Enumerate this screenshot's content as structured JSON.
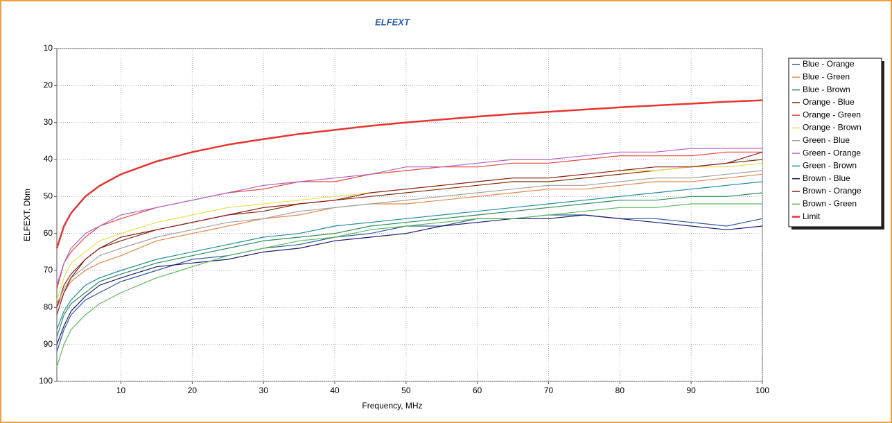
{
  "chart_data": {
    "type": "line",
    "title": "ELFEXT",
    "x_label": "Frequency, MHz",
    "y_label": "ELFEXT, Dbm",
    "x": [
      1,
      2,
      3,
      5,
      7,
      10,
      15,
      20,
      25,
      30,
      35,
      40,
      45,
      50,
      55,
      60,
      65,
      70,
      75,
      80,
      85,
      90,
      95,
      100
    ],
    "xlim": [
      1,
      100
    ],
    "xticks": [
      10,
      20,
      30,
      40,
      50,
      60,
      70,
      80,
      90,
      100
    ],
    "ylim": [
      100,
      10
    ],
    "yticks": [
      10,
      20,
      30,
      40,
      50,
      60,
      70,
      80,
      90,
      100
    ],
    "grid": true,
    "series": [
      {
        "name": "Blue - Orange",
        "color": "#2a5a9a",
        "values": [
          92,
          86,
          82,
          78,
          76,
          73,
          70,
          67,
          66,
          64,
          63,
          61,
          60,
          58,
          58,
          56,
          56,
          55,
          55,
          56,
          56,
          57,
          58,
          56
        ]
      },
      {
        "name": "Blue - Green",
        "color": "#e8864a",
        "values": [
          80,
          76,
          73,
          70,
          68,
          66,
          62,
          60,
          58,
          56,
          55,
          53,
          52,
          52,
          51,
          50,
          49,
          48,
          48,
          47,
          46,
          46,
          45,
          44
        ]
      },
      {
        "name": "Blue - Brown",
        "color": "#2e8b57",
        "values": [
          88,
          82,
          79,
          76,
          73,
          71,
          68,
          66,
          64,
          62,
          61,
          60,
          58,
          57,
          56,
          55,
          54,
          53,
          52,
          51,
          51,
          50,
          50,
          49
        ]
      },
      {
        "name": "Orange - Blue",
        "color": "#7a2e0a",
        "values": [
          80,
          74,
          71,
          67,
          64,
          62,
          59,
          57,
          55,
          54,
          52,
          51,
          50,
          49,
          48,
          47,
          46,
          46,
          45,
          44,
          43,
          42,
          41,
          40
        ]
      },
      {
        "name": "Orange - Green",
        "color": "#e8453c",
        "values": [
          75,
          68,
          65,
          61,
          58,
          56,
          53,
          51,
          49,
          48,
          46,
          46,
          44,
          43,
          42,
          42,
          41,
          41,
          40,
          39,
          39,
          39,
          38,
          38
        ]
      },
      {
        "name": "Orange - Brown",
        "color": "#e8e04a",
        "values": [
          78,
          72,
          68,
          65,
          62,
          60,
          57,
          55,
          53,
          52,
          51,
          50,
          49,
          48,
          47,
          46,
          45,
          45,
          44,
          43,
          43,
          42,
          42,
          41
        ]
      },
      {
        "name": "Green - Blue",
        "color": "#a0a0a0",
        "values": [
          79,
          75,
          72,
          69,
          66,
          64,
          61,
          59,
          57,
          56,
          54,
          53,
          52,
          51,
          50,
          49,
          48,
          47,
          47,
          46,
          45,
          45,
          44,
          43
        ]
      },
      {
        "name": "Green - Orange",
        "color": "#b062c4",
        "values": [
          74,
          68,
          64,
          60,
          58,
          55,
          53,
          51,
          49,
          47,
          46,
          45,
          44,
          42,
          42,
          41,
          40,
          40,
          39,
          38,
          38,
          37,
          37,
          37
        ]
      },
      {
        "name": "Green - Brown",
        "color": "#1f8aa0",
        "values": [
          86,
          81,
          78,
          74,
          72,
          70,
          67,
          65,
          63,
          61,
          60,
          58,
          57,
          56,
          55,
          54,
          53,
          52,
          51,
          50,
          49,
          48,
          47,
          46
        ]
      },
      {
        "name": "Brown - Blue",
        "color": "#1a1a6e",
        "values": [
          90,
          85,
          81,
          77,
          74,
          72,
          69,
          68,
          67,
          65,
          64,
          62,
          61,
          60,
          58,
          57,
          56,
          56,
          55,
          56,
          57,
          58,
          59,
          58
        ]
      },
      {
        "name": "Brown - Orange",
        "color": "#8b1a1a",
        "values": [
          82,
          76,
          72,
          67,
          64,
          61,
          59,
          57,
          55,
          53,
          52,
          51,
          49,
          48,
          47,
          46,
          45,
          45,
          44,
          43,
          42,
          42,
          41,
          38
        ]
      },
      {
        "name": "Brown - Green",
        "color": "#5cb85c",
        "values": [
          96,
          90,
          86,
          82,
          79,
          76,
          72,
          69,
          66,
          64,
          62,
          61,
          59,
          58,
          57,
          56,
          56,
          55,
          54,
          53,
          53,
          52,
          52,
          52
        ]
      },
      {
        "name": "Limit",
        "color": "#e8332f",
        "width": 2.5,
        "values": [
          64,
          58,
          54.5,
          50,
          47.1,
          44,
          40.5,
          38,
          36,
          34.5,
          33.1,
          32,
          30.9,
          30,
          29.2,
          28.4,
          27.7,
          27.1,
          26.5,
          25.9,
          25.4,
          24.9,
          24.4,
          24
        ]
      }
    ]
  }
}
